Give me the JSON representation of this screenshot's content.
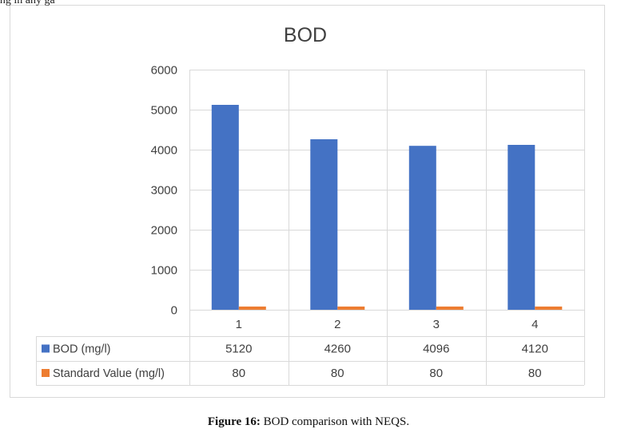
{
  "top_fragment_text": "ing in any ga",
  "caption": {
    "label": "Figure 16:",
    "text": " BOD comparison with NEQS."
  },
  "chart_data": {
    "type": "bar",
    "title": "BOD",
    "categories": [
      "1",
      "2",
      "3",
      "4"
    ],
    "series": [
      {
        "name": "BOD (mg/l)",
        "values": [
          5120,
          4260,
          4096,
          4120
        ],
        "color": "#4472c4"
      },
      {
        "name": "Standard Value (mg/l)",
        "values": [
          80,
          80,
          80,
          80
        ],
        "color": "#ed7d31"
      }
    ],
    "ylim": [
      0,
      6000
    ],
    "yticks": [
      0,
      1000,
      2000,
      3000,
      4000,
      5000,
      6000
    ],
    "grid": true,
    "legend": "data-table-left",
    "data_table": true
  }
}
